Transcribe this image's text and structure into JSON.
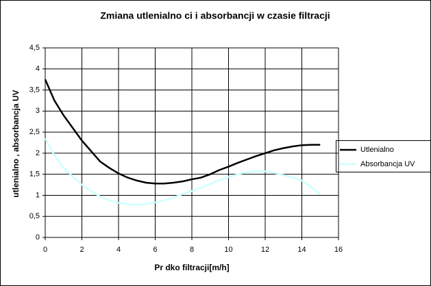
{
  "chart_data": {
    "type": "line",
    "title": "Zmiana utlenialno   ci i absorbancji w czasie filtracji",
    "x_label": "Pr  dko   filtracji[m/h]",
    "y_label": "utlenialno   , absorbancja UV",
    "x": [
      0,
      0.5,
      1,
      1.5,
      2,
      2.5,
      3,
      3.5,
      4,
      4.5,
      5,
      5.5,
      6,
      6.5,
      7,
      7.5,
      8,
      8.5,
      9,
      9.5,
      10,
      10.5,
      11,
      11.5,
      12,
      12.5,
      13,
      13.5,
      14,
      14.5,
      15
    ],
    "series": [
      {
        "name": "Utlenialno",
        "color": "#000000",
        "values": [
          3.75,
          3.25,
          2.9,
          2.6,
          2.3,
          2.05,
          1.8,
          1.65,
          1.52,
          1.42,
          1.35,
          1.3,
          1.28,
          1.28,
          1.3,
          1.33,
          1.38,
          1.42,
          1.5,
          1.6,
          1.68,
          1.77,
          1.85,
          1.93,
          2.0,
          2.07,
          2.12,
          2.16,
          2.19,
          2.2,
          2.2
        ]
      },
      {
        "name": "Absorbancja UV",
        "color": "#ccffff",
        "values": [
          2.35,
          1.95,
          1.65,
          1.45,
          1.25,
          1.1,
          0.97,
          0.88,
          0.82,
          0.79,
          0.78,
          0.79,
          0.83,
          0.88,
          0.95,
          1.03,
          1.1,
          1.18,
          1.27,
          1.36,
          1.43,
          1.5,
          1.55,
          1.57,
          1.57,
          1.53,
          1.48,
          1.42,
          1.35,
          1.2,
          1.02
        ]
      }
    ],
    "xlim": [
      0,
      16
    ],
    "xticks": [
      0,
      2,
      4,
      6,
      8,
      10,
      12,
      14,
      16
    ],
    "ylim": [
      0,
      4.5
    ],
    "yticks": [
      0,
      {
        "value": 0.5,
        "label": "0,5"
      },
      1,
      {
        "value": 1.5,
        "label": "1,5"
      },
      2,
      {
        "value": 2.5,
        "label": "2,5"
      },
      3,
      {
        "value": 3.5,
        "label": "3,5"
      },
      4,
      {
        "value": 4.5,
        "label": "4,5"
      }
    ],
    "grid": true,
    "legend": "right"
  }
}
